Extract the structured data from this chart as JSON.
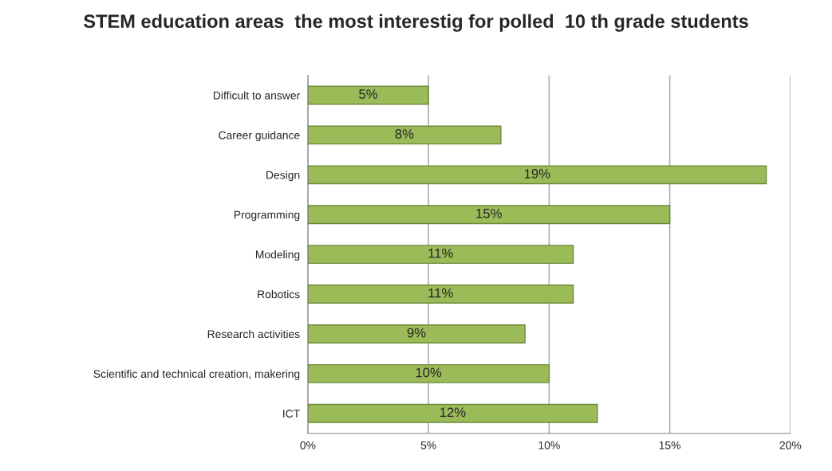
{
  "chart_data": {
    "type": "bar",
    "orientation": "horizontal",
    "title": "STEM education areas  the most interestig for polled  10 th grade students",
    "categories": [
      "Difficult to answer",
      "Career guidance",
      "Design",
      "Programming",
      "Modeling",
      "Robotics",
      "Research activities",
      "Scientific and technical creation, makering",
      "ICT"
    ],
    "values": [
      5,
      8,
      19,
      15,
      11,
      11,
      9,
      10,
      12
    ],
    "value_labels": [
      "5%",
      "8%",
      "19%",
      "15%",
      "11%",
      "11%",
      "9%",
      "10%",
      "12%"
    ],
    "color": "#9bbb59",
    "xlim": [
      0,
      20
    ],
    "xticks": [
      {
        "value": 0,
        "label": "0%"
      },
      {
        "value": 5,
        "label": "5%"
      },
      {
        "value": 10,
        "label": "10%"
      },
      {
        "value": 15,
        "label": "15%"
      },
      {
        "value": 20,
        "label": "20%"
      }
    ],
    "grid": "x"
  }
}
